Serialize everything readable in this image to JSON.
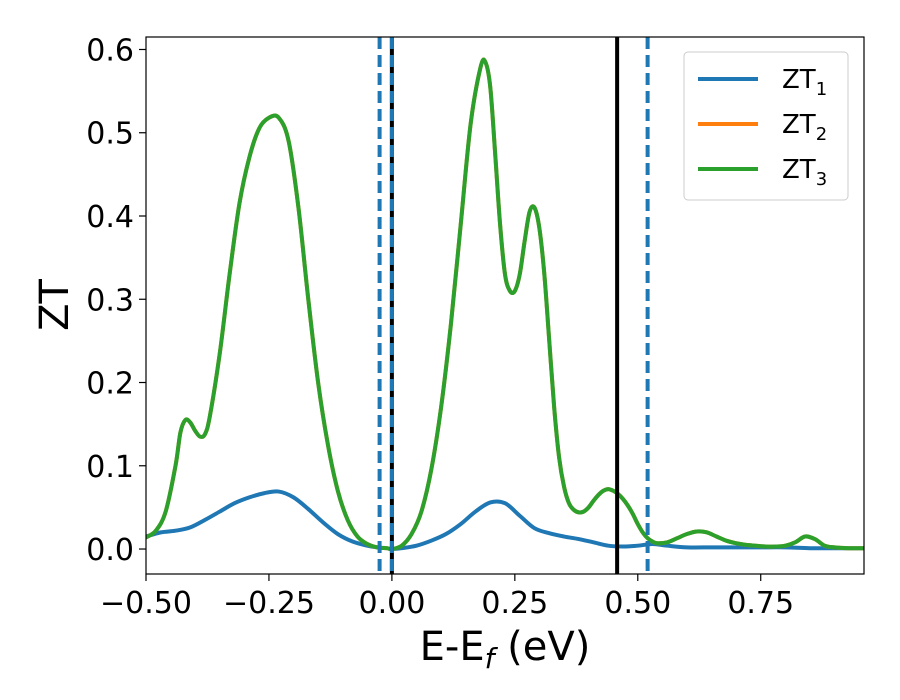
{
  "chart_data": {
    "type": "line",
    "title": "",
    "xlabel": "E-E",
    "xlabel_sub": "f",
    "xlabel_unit": " (eV)",
    "ylabel": "ZT",
    "xlim": [
      -0.5,
      0.96
    ],
    "ylim": [
      -0.03,
      0.615
    ],
    "grid": false,
    "legend_position": "top-right",
    "xticks": [
      -0.5,
      -0.25,
      0.0,
      0.25,
      0.5,
      0.75
    ],
    "xtick_labels": [
      "−0.50",
      "−0.25",
      "0.00",
      "0.25",
      "0.50",
      "0.75"
    ],
    "yticks": [
      0.0,
      0.1,
      0.2,
      0.3,
      0.4,
      0.5,
      0.6
    ],
    "ytick_labels": [
      "0.0",
      "0.1",
      "0.2",
      "0.3",
      "0.4",
      "0.5",
      "0.6"
    ],
    "series": [
      {
        "name": "ZT",
        "sub": "1",
        "color": "#1f77b4",
        "x": [
          -0.5,
          -0.47,
          -0.44,
          -0.41,
          -0.38,
          -0.35,
          -0.32,
          -0.29,
          -0.26,
          -0.23,
          -0.2,
          -0.17,
          -0.14,
          -0.11,
          -0.08,
          -0.05,
          -0.03,
          -0.01,
          0.0,
          0.02,
          0.05,
          0.08,
          0.11,
          0.14,
          0.17,
          0.2,
          0.23,
          0.26,
          0.29,
          0.32,
          0.35,
          0.38,
          0.41,
          0.44,
          0.47,
          0.5,
          0.53,
          0.56,
          0.6,
          0.65,
          0.7,
          0.75,
          0.8,
          0.85,
          0.9,
          0.96
        ],
        "y": [
          0.015,
          0.02,
          0.022,
          0.026,
          0.035,
          0.045,
          0.055,
          0.062,
          0.067,
          0.069,
          0.062,
          0.048,
          0.032,
          0.018,
          0.009,
          0.004,
          0.002,
          0.001,
          0.0,
          0.001,
          0.004,
          0.01,
          0.018,
          0.03,
          0.045,
          0.056,
          0.055,
          0.04,
          0.025,
          0.019,
          0.015,
          0.012,
          0.008,
          0.004,
          0.003,
          0.004,
          0.006,
          0.004,
          0.002,
          0.002,
          0.002,
          0.002,
          0.002,
          0.001,
          0.001,
          0.001
        ]
      },
      {
        "name": "ZT",
        "sub": "2",
        "color": "#ff7f0e",
        "x": [
          -0.5,
          -0.48,
          -0.46,
          -0.44,
          -0.43,
          -0.42,
          -0.41,
          -0.4,
          -0.39,
          -0.38,
          -0.37,
          -0.35,
          -0.33,
          -0.31,
          -0.29,
          -0.27,
          -0.25,
          -0.23,
          -0.21,
          -0.19,
          -0.17,
          -0.15,
          -0.13,
          -0.11,
          -0.09,
          -0.07,
          -0.05,
          -0.03,
          -0.01,
          0.0,
          0.02,
          0.04,
          0.06,
          0.08,
          0.1,
          0.12,
          0.14,
          0.16,
          0.18,
          0.19,
          0.2,
          0.21,
          0.22,
          0.23,
          0.24,
          0.25,
          0.26,
          0.27,
          0.28,
          0.29,
          0.3,
          0.31,
          0.32,
          0.33,
          0.34,
          0.35,
          0.36,
          0.37,
          0.38,
          0.39,
          0.4,
          0.41,
          0.42,
          0.43,
          0.44,
          0.45,
          0.46,
          0.47,
          0.48,
          0.49,
          0.5,
          0.51,
          0.52,
          0.53,
          0.54,
          0.56,
          0.58,
          0.6,
          0.62,
          0.64,
          0.66,
          0.68,
          0.7,
          0.72,
          0.74,
          0.76,
          0.78,
          0.8,
          0.82,
          0.84,
          0.86,
          0.88,
          0.9,
          0.93,
          0.96
        ],
        "y": [
          0.014,
          0.022,
          0.045,
          0.1,
          0.14,
          0.155,
          0.152,
          0.142,
          0.135,
          0.138,
          0.16,
          0.235,
          0.33,
          0.415,
          0.47,
          0.505,
          0.518,
          0.518,
          0.49,
          0.41,
          0.3,
          0.2,
          0.125,
          0.07,
          0.035,
          0.015,
          0.006,
          0.002,
          0.001,
          0.0,
          0.004,
          0.018,
          0.045,
          0.095,
          0.17,
          0.27,
          0.39,
          0.51,
          0.578,
          0.585,
          0.555,
          0.475,
          0.39,
          0.33,
          0.31,
          0.31,
          0.33,
          0.37,
          0.405,
          0.41,
          0.385,
          0.33,
          0.25,
          0.17,
          0.11,
          0.075,
          0.055,
          0.047,
          0.044,
          0.045,
          0.05,
          0.058,
          0.065,
          0.07,
          0.072,
          0.07,
          0.066,
          0.06,
          0.052,
          0.042,
          0.03,
          0.02,
          0.013,
          0.009,
          0.007,
          0.008,
          0.013,
          0.018,
          0.021,
          0.02,
          0.015,
          0.01,
          0.007,
          0.005,
          0.004,
          0.003,
          0.003,
          0.004,
          0.008,
          0.015,
          0.012,
          0.004,
          0.002,
          0.001,
          0.001
        ]
      },
      {
        "name": "ZT",
        "sub": "3",
        "color": "#2ca02c",
        "x": [
          -0.5,
          -0.48,
          -0.46,
          -0.44,
          -0.43,
          -0.42,
          -0.41,
          -0.4,
          -0.39,
          -0.38,
          -0.37,
          -0.35,
          -0.33,
          -0.31,
          -0.29,
          -0.27,
          -0.25,
          -0.23,
          -0.21,
          -0.19,
          -0.17,
          -0.15,
          -0.13,
          -0.11,
          -0.09,
          -0.07,
          -0.05,
          -0.03,
          -0.01,
          0.0,
          0.02,
          0.04,
          0.06,
          0.08,
          0.1,
          0.12,
          0.14,
          0.16,
          0.18,
          0.19,
          0.2,
          0.21,
          0.22,
          0.23,
          0.24,
          0.25,
          0.26,
          0.27,
          0.28,
          0.29,
          0.3,
          0.31,
          0.32,
          0.33,
          0.34,
          0.35,
          0.36,
          0.37,
          0.38,
          0.39,
          0.4,
          0.41,
          0.42,
          0.43,
          0.44,
          0.45,
          0.46,
          0.47,
          0.48,
          0.49,
          0.5,
          0.51,
          0.52,
          0.53,
          0.54,
          0.56,
          0.58,
          0.6,
          0.62,
          0.64,
          0.66,
          0.68,
          0.7,
          0.72,
          0.74,
          0.76,
          0.78,
          0.8,
          0.82,
          0.84,
          0.86,
          0.88,
          0.9,
          0.93,
          0.96
        ],
        "y": [
          0.014,
          0.022,
          0.045,
          0.1,
          0.14,
          0.155,
          0.152,
          0.142,
          0.135,
          0.138,
          0.16,
          0.235,
          0.33,
          0.415,
          0.47,
          0.505,
          0.518,
          0.518,
          0.49,
          0.41,
          0.3,
          0.2,
          0.125,
          0.07,
          0.035,
          0.015,
          0.006,
          0.002,
          0.001,
          0.0,
          0.004,
          0.018,
          0.045,
          0.095,
          0.17,
          0.27,
          0.39,
          0.51,
          0.578,
          0.585,
          0.555,
          0.475,
          0.39,
          0.33,
          0.31,
          0.31,
          0.33,
          0.37,
          0.405,
          0.41,
          0.385,
          0.33,
          0.25,
          0.17,
          0.11,
          0.075,
          0.055,
          0.047,
          0.044,
          0.045,
          0.05,
          0.058,
          0.065,
          0.07,
          0.072,
          0.07,
          0.066,
          0.06,
          0.052,
          0.042,
          0.03,
          0.02,
          0.013,
          0.009,
          0.007,
          0.008,
          0.013,
          0.018,
          0.021,
          0.02,
          0.015,
          0.01,
          0.007,
          0.005,
          0.004,
          0.003,
          0.003,
          0.004,
          0.008,
          0.015,
          0.012,
          0.004,
          0.002,
          0.001,
          0.001
        ]
      }
    ],
    "vlines": [
      {
        "x": -0.025,
        "color": "#1f77b4",
        "style": "dashed"
      },
      {
        "x": 0.0,
        "color": "#000000",
        "style": "solid"
      },
      {
        "x": 0.0,
        "color": "#1f77b4",
        "style": "dashed"
      },
      {
        "x": 0.458,
        "color": "#000000",
        "style": "solid"
      },
      {
        "x": 0.52,
        "color": "#1f77b4",
        "style": "dashed"
      }
    ]
  }
}
